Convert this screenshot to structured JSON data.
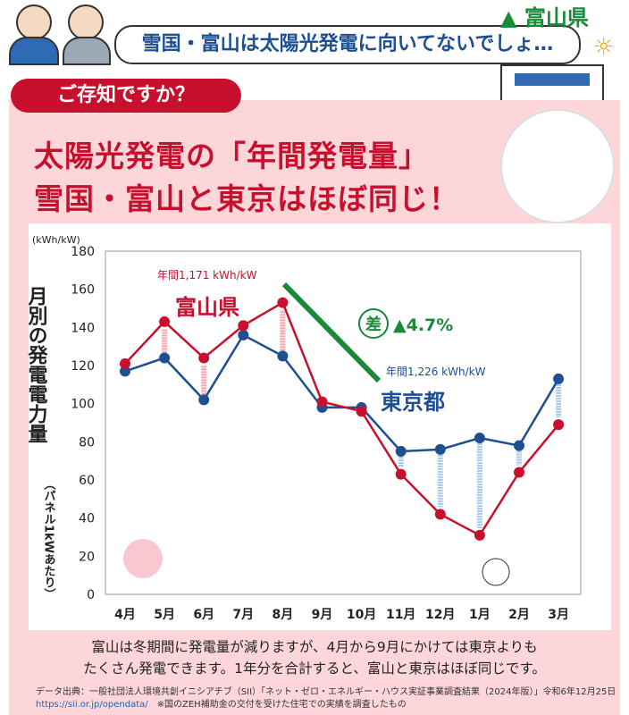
{
  "header": {
    "bubble": "雪国・富山は太陽光発電に向いてないでしょ…",
    "logo": "富山県",
    "tab": "ご存知ですか？"
  },
  "title": {
    "line1": "太陽光発電の「年間発電量」",
    "line2": "雪国・富山と東京はほぼ同じ！"
  },
  "colors": {
    "toyama": "#c8102e",
    "tokyo": "#1d4f91",
    "diff": "#1a8a3a"
  },
  "chart_data": {
    "type": "line",
    "title": "",
    "unit": "(kWh/kW)",
    "ylabel": "月別の発電電力量",
    "ylabel_sub": "（パネル1kWあたり）",
    "ylim": [
      0,
      180
    ],
    "yticks": [
      "0",
      "20",
      "40",
      "60",
      "80",
      "100",
      "120",
      "140",
      "160",
      "180"
    ],
    "categories": [
      "4月",
      "5月",
      "6月",
      "7月",
      "8月",
      "9月",
      "10月",
      "11月",
      "12月",
      "1月",
      "2月",
      "3月"
    ],
    "series": [
      {
        "name": "富山県",
        "annual": "年間1,171 kWh/kW",
        "values": [
          121,
          143,
          124,
          141,
          153,
          101,
          96,
          63,
          42,
          31,
          64,
          89
        ]
      },
      {
        "name": "東京都",
        "annual": "年間1,226 kWh/kW",
        "values": [
          117,
          124,
          102,
          136,
          125,
          98,
          98,
          75,
          76,
          82,
          78,
          113
        ]
      }
    ],
    "diff_label": "差",
    "diff_value": "▲4.7%"
  },
  "note": {
    "line1": "富山は冬期間に発電量が減りますが、4月から9月にかけては東京よりも",
    "line2": "たくさん発電できます。1年分を合計すると、富山と東京はほぼ同じです。"
  },
  "source": {
    "line1": "データ出典：一般社団法人環境共創イニシアチブ（SII）「ネット・ゼロ・エネルギー・ハウス実証事業調査結果（2024年版）」令和6年12月25日",
    "url": "https://sii.or.jp/opendata/",
    "remark": "※国のZEH補助金の交付を受けた住宅での実績を調査したもの"
  }
}
